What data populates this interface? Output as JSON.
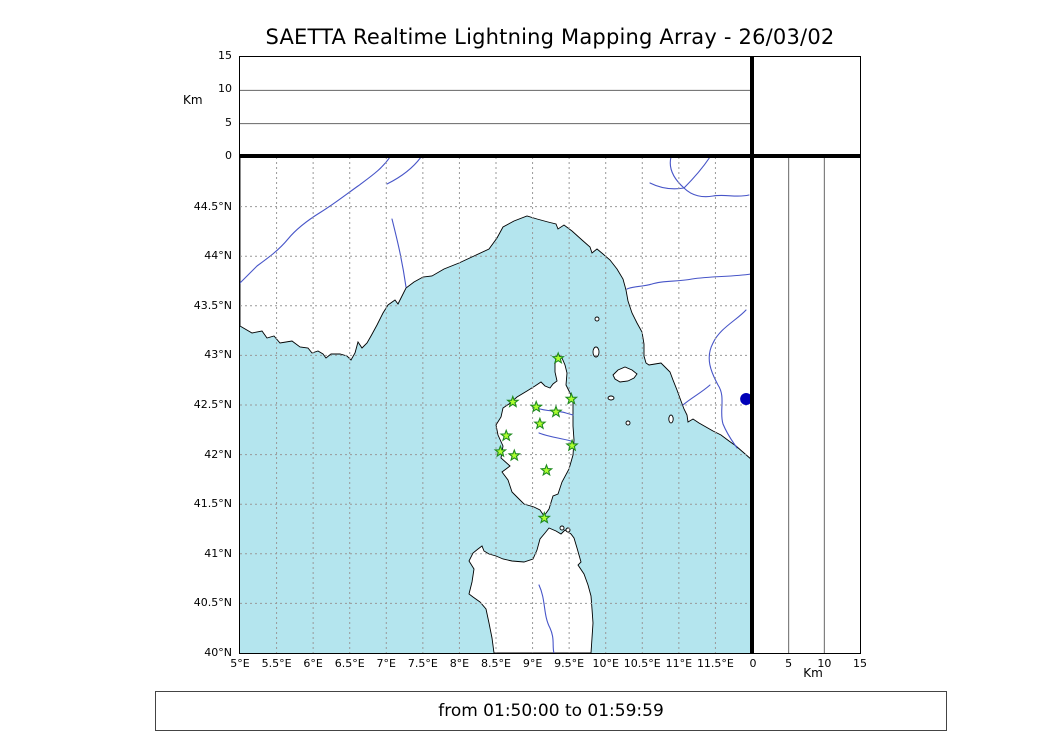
{
  "title": "SAETTA Realtime Lightning Mapping Array - 26/03/02",
  "status": "from 01:50:00 to 01:59:59",
  "alt_axis": {
    "label": "Km",
    "max": 15,
    "ticks": [
      0,
      5,
      10,
      15
    ],
    "gridlines": [
      5,
      10
    ]
  },
  "map": {
    "lon_range": [
      5,
      12
    ],
    "lat_range": [
      40,
      45
    ],
    "lon_ticks": [
      {
        "value": 5,
        "label": "5°E"
      },
      {
        "value": 5.5,
        "label": "5.5°E"
      },
      {
        "value": 6,
        "label": "6°E"
      },
      {
        "value": 6.5,
        "label": "6.5°E"
      },
      {
        "value": 7,
        "label": "7°E"
      },
      {
        "value": 7.5,
        "label": "7.5°E"
      },
      {
        "value": 8,
        "label": "8°E"
      },
      {
        "value": 8.5,
        "label": "8.5°E"
      },
      {
        "value": 9,
        "label": "9°E"
      },
      {
        "value": 9.5,
        "label": "9.5°E"
      },
      {
        "value": 10,
        "label": "10°E"
      },
      {
        "value": 10.5,
        "label": "10.5°E"
      },
      {
        "value": 11,
        "label": "11°E"
      },
      {
        "value": 11.5,
        "label": "11.5°E"
      }
    ],
    "lat_ticks": [
      {
        "value": 44.5,
        "label": "44.5°N"
      },
      {
        "value": 44,
        "label": "44°N"
      },
      {
        "value": 43.5,
        "label": "43.5°N"
      },
      {
        "value": 43,
        "label": "43°N"
      },
      {
        "value": 42.5,
        "label": "42.5°N"
      },
      {
        "value": 42,
        "label": "42°N"
      },
      {
        "value": 41.5,
        "label": "41.5°N"
      },
      {
        "value": 41,
        "label": "41°N"
      },
      {
        "value": 40.5,
        "label": "40.5°N"
      },
      {
        "value": 40,
        "label": "40°N"
      }
    ],
    "stations": [
      {
        "lon": 9.35,
        "lat": 42.97
      },
      {
        "lon": 8.73,
        "lat": 42.53
      },
      {
        "lon": 9.05,
        "lat": 42.48
      },
      {
        "lon": 9.32,
        "lat": 42.43
      },
      {
        "lon": 9.53,
        "lat": 42.56
      },
      {
        "lon": 9.1,
        "lat": 42.31
      },
      {
        "lon": 8.64,
        "lat": 42.19
      },
      {
        "lon": 8.56,
        "lat": 42.03
      },
      {
        "lon": 8.75,
        "lat": 41.99
      },
      {
        "lon": 9.54,
        "lat": 42.09
      },
      {
        "lon": 9.19,
        "lat": 41.84
      },
      {
        "lon": 9.16,
        "lat": 41.36
      }
    ],
    "marker": {
      "lon": 11.92,
      "lat": 42.56
    }
  },
  "colors": {
    "sea": "#b4e5ee",
    "land": "#ffffff",
    "coast": "#000000",
    "river": "#4755c8",
    "grid": "#999999",
    "station_fill": "#adff2f",
    "station_stroke": "#1f8a1f",
    "marker": "#0000b8"
  }
}
